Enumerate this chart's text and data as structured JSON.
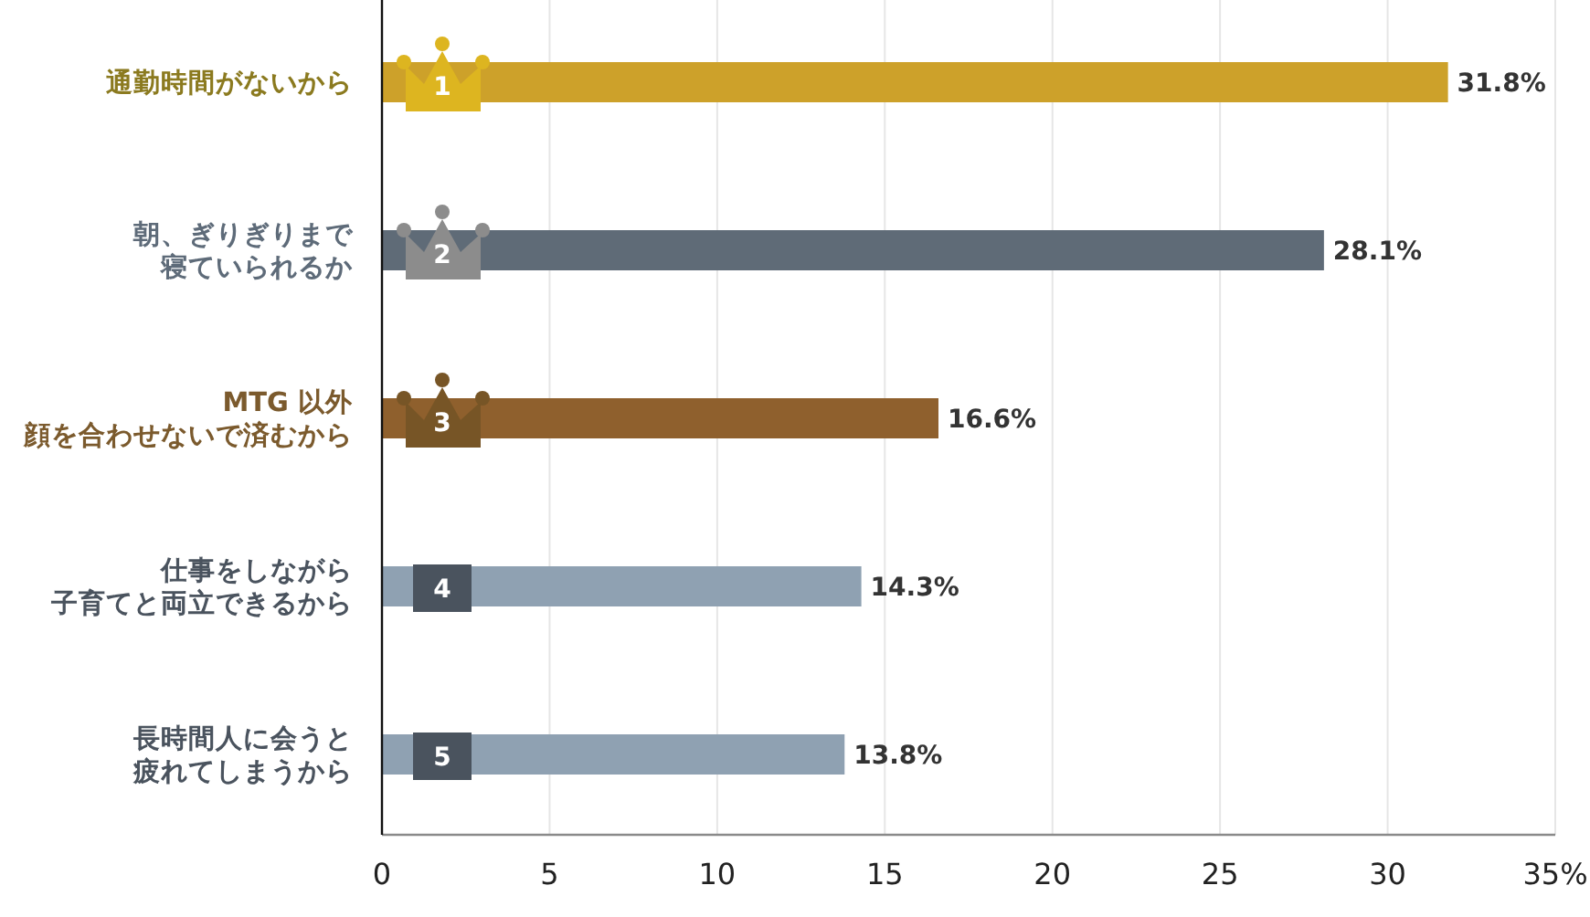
{
  "chart_data": {
    "type": "bar",
    "orientation": "horizontal",
    "categories": [
      "通勤時間がないから",
      "朝、ぎりぎりまで寝ていられるか",
      "MTG 以外顔を合わせないで済むから",
      "仕事をしながら子育てと両立できるから",
      "長時間人に会うと疲れてしまうから"
    ],
    "values": [
      31.8,
      28.1,
      16.6,
      14.3,
      13.8
    ],
    "colors": [
      "#cda12a",
      "#5f6b77",
      "#8f602d",
      "#8fa1b2",
      "#8fa1b2"
    ],
    "value_labels": [
      "31.8%",
      "28.1%",
      "16.6%",
      "14.3%",
      "13.8%"
    ],
    "xlim": [
      0,
      35
    ],
    "xticks": [
      0,
      5,
      10,
      15,
      20,
      25,
      30,
      {
        "value": 35,
        "label": "35%"
      }
    ],
    "grid": "x",
    "annotations": [
      "1",
      "2",
      "3",
      "4",
      "5"
    ]
  }
}
